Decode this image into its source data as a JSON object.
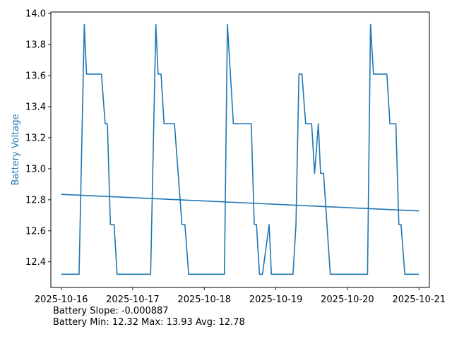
{
  "chart_data": {
    "type": "line",
    "ylabel": "Battery Voltage",
    "ylabel_color": "#1f77b4",
    "line_color": "#1f77b4",
    "ylim": [
      12.235,
      14.01
    ],
    "xlim": [
      "2025-10-15 20:32",
      "2025-10-21 03:30"
    ],
    "x_ticks": [
      "2025-10-16",
      "2025-10-17",
      "2025-10-18",
      "2025-10-19",
      "2025-10-20",
      "2025-10-21"
    ],
    "y_ticks": [
      12.4,
      12.6,
      12.8,
      13.0,
      13.2,
      13.4,
      13.6,
      13.8,
      14.0
    ],
    "grid": false,
    "series": [
      {
        "points": [
          [
            "2025-10-16 00:00",
            12.32
          ],
          [
            "2025-10-16 06:00",
            12.32
          ],
          [
            "2025-10-16 07:45",
            13.93
          ],
          [
            "2025-10-16 08:30",
            13.61
          ],
          [
            "2025-10-16 13:30",
            13.61
          ],
          [
            "2025-10-16 14:45",
            13.29
          ],
          [
            "2025-10-16 15:30",
            13.29
          ],
          [
            "2025-10-16 16:30",
            12.64
          ],
          [
            "2025-10-16 17:45",
            12.64
          ],
          [
            "2025-10-16 18:45",
            12.32
          ],
          [
            "2025-10-17 06:00",
            12.32
          ],
          [
            "2025-10-17 07:45",
            13.93
          ],
          [
            "2025-10-17 08:30",
            13.61
          ],
          [
            "2025-10-17 09:30",
            13.61
          ],
          [
            "2025-10-17 10:30",
            13.29
          ],
          [
            "2025-10-17 14:00",
            13.29
          ],
          [
            "2025-10-17 16:30",
            12.64
          ],
          [
            "2025-10-17 17:30",
            12.64
          ],
          [
            "2025-10-17 18:45",
            12.32
          ],
          [
            "2025-10-18 06:45",
            12.32
          ],
          [
            "2025-10-18 07:45",
            13.93
          ],
          [
            "2025-10-18 09:45",
            13.29
          ],
          [
            "2025-10-18 15:45",
            13.29
          ],
          [
            "2025-10-18 16:45",
            12.64
          ],
          [
            "2025-10-18 17:30",
            12.64
          ],
          [
            "2025-10-18 18:30",
            12.32
          ],
          [
            "2025-10-18 19:30",
            12.32
          ],
          [
            "2025-10-18 21:45",
            12.64
          ],
          [
            "2025-10-18 22:30",
            12.32
          ],
          [
            "2025-10-19 05:45",
            12.32
          ],
          [
            "2025-10-19 06:45",
            12.64
          ],
          [
            "2025-10-19 07:45",
            13.61
          ],
          [
            "2025-10-19 08:45",
            13.61
          ],
          [
            "2025-10-19 10:00",
            13.29
          ],
          [
            "2025-10-19 12:00",
            13.29
          ],
          [
            "2025-10-19 13:00",
            12.97
          ],
          [
            "2025-10-19 14:15",
            13.29
          ],
          [
            "2025-10-19 15:00",
            12.97
          ],
          [
            "2025-10-19 16:00",
            12.97
          ],
          [
            "2025-10-19 18:15",
            12.32
          ],
          [
            "2025-10-20 06:45",
            12.32
          ],
          [
            "2025-10-20 07:45",
            13.93
          ],
          [
            "2025-10-20 08:45",
            13.61
          ],
          [
            "2025-10-20 13:15",
            13.61
          ],
          [
            "2025-10-20 14:15",
            13.29
          ],
          [
            "2025-10-20 16:15",
            13.29
          ],
          [
            "2025-10-20 17:15",
            12.64
          ],
          [
            "2025-10-20 18:00",
            12.64
          ],
          [
            "2025-10-20 19:15",
            12.32
          ],
          [
            "2025-10-21 00:00",
            12.32
          ]
        ]
      },
      {
        "points": [
          [
            "2025-10-16 00:00",
            12.835
          ],
          [
            "2025-10-21 00:00",
            12.728
          ]
        ]
      }
    ]
  },
  "stats": {
    "slope": "Battery Slope: -0.000887",
    "summary": "Battery Min: 12.32 Max: 13.93 Avg: 12.78"
  }
}
